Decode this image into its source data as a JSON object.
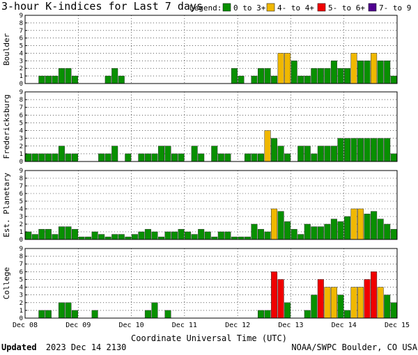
{
  "chart_data": {
    "type": "bar",
    "title": "3-hour K-indices for Last 7 days",
    "legend": {
      "label": "Legend:",
      "placement": "top-right",
      "entries": [
        {
          "label": "0 to 3+",
          "color": "#089000"
        },
        {
          "label": "4- to 4+",
          "color": "#f0b800"
        },
        {
          "label": "5- to 6+",
          "color": "#f00000"
        },
        {
          "label": "7- to 9",
          "color": "#500090"
        }
      ]
    },
    "xlabel": "Coordinate Universal Time (UTC)",
    "x_tick_labels": [
      "Dec 08",
      "Dec 09",
      "Dec 10",
      "Dec 11",
      "Dec 12",
      "Dec 13",
      "Dec 14",
      "Dec 15"
    ],
    "y_ticks": [
      "0",
      "1",
      "2",
      "3",
      "4",
      "5",
      "6",
      "7",
      "8",
      "9"
    ],
    "ylim": [
      0,
      9
    ],
    "grid": true,
    "bars_per_day": 8,
    "panels": [
      {
        "name": "Boulder",
        "values": [
          0,
          0,
          1,
          1,
          1,
          2,
          2,
          1,
          0,
          0,
          0,
          0,
          1,
          2,
          1,
          0,
          0,
          0,
          0,
          0,
          0,
          0,
          0,
          0,
          0,
          0,
          0,
          0,
          0,
          0,
          0,
          2,
          1,
          0,
          1,
          2,
          2,
          1,
          4,
          4,
          3,
          1,
          1,
          2,
          2,
          2,
          3,
          2,
          2,
          4,
          3,
          3,
          4,
          3,
          3,
          1,
          0
        ]
      },
      {
        "name": "Fredericksburg",
        "values": [
          1,
          1,
          1,
          1,
          1,
          2,
          1,
          1,
          0,
          0,
          0,
          1,
          1,
          2,
          0,
          1,
          0,
          1,
          1,
          1,
          2,
          2,
          1,
          1,
          0,
          2,
          1,
          0,
          2,
          1,
          1,
          0,
          0,
          1,
          1,
          1,
          4,
          3,
          2,
          1,
          0,
          2,
          2,
          1,
          2,
          2,
          2,
          3,
          3,
          3,
          3,
          3,
          3,
          3,
          3,
          1,
          0
        ]
      },
      {
        "name": "Est. Planetary",
        "values": [
          1,
          0.67,
          1.33,
          1.33,
          0.67,
          1.67,
          1.67,
          1.33,
          0.33,
          0.33,
          1,
          0.67,
          0.33,
          0.67,
          0.67,
          0.33,
          0.67,
          1,
          1.33,
          1,
          0.33,
          1,
          1,
          1.33,
          1,
          0.67,
          1.33,
          1,
          0.33,
          1,
          1,
          0.33,
          0.33,
          0.33,
          2,
          1.33,
          1,
          4,
          3.67,
          2.33,
          1.33,
          0.67,
          2,
          1.67,
          1.67,
          2,
          2.67,
          2.33,
          3,
          4,
          4,
          3.33,
          3.67,
          2.67,
          2,
          1.33,
          0
        ]
      },
      {
        "name": "College",
        "values": [
          0,
          0,
          1,
          1,
          0,
          2,
          2,
          1,
          0,
          0,
          1,
          0,
          0,
          0,
          0,
          0,
          0,
          0,
          1,
          2,
          0,
          1,
          0,
          0,
          0,
          0,
          0,
          0,
          0,
          0,
          0,
          0,
          0,
          0,
          0,
          1,
          1,
          6,
          5,
          2,
          0,
          0,
          1,
          3,
          5,
          4,
          4,
          3,
          1,
          4,
          4,
          5,
          6,
          4,
          3,
          2,
          0
        ]
      }
    ]
  },
  "footer": {
    "updated_label": "Updated",
    "updated_value": "2023 Dec 14 2130",
    "source": "NOAA/SWPC Boulder, CO USA"
  }
}
